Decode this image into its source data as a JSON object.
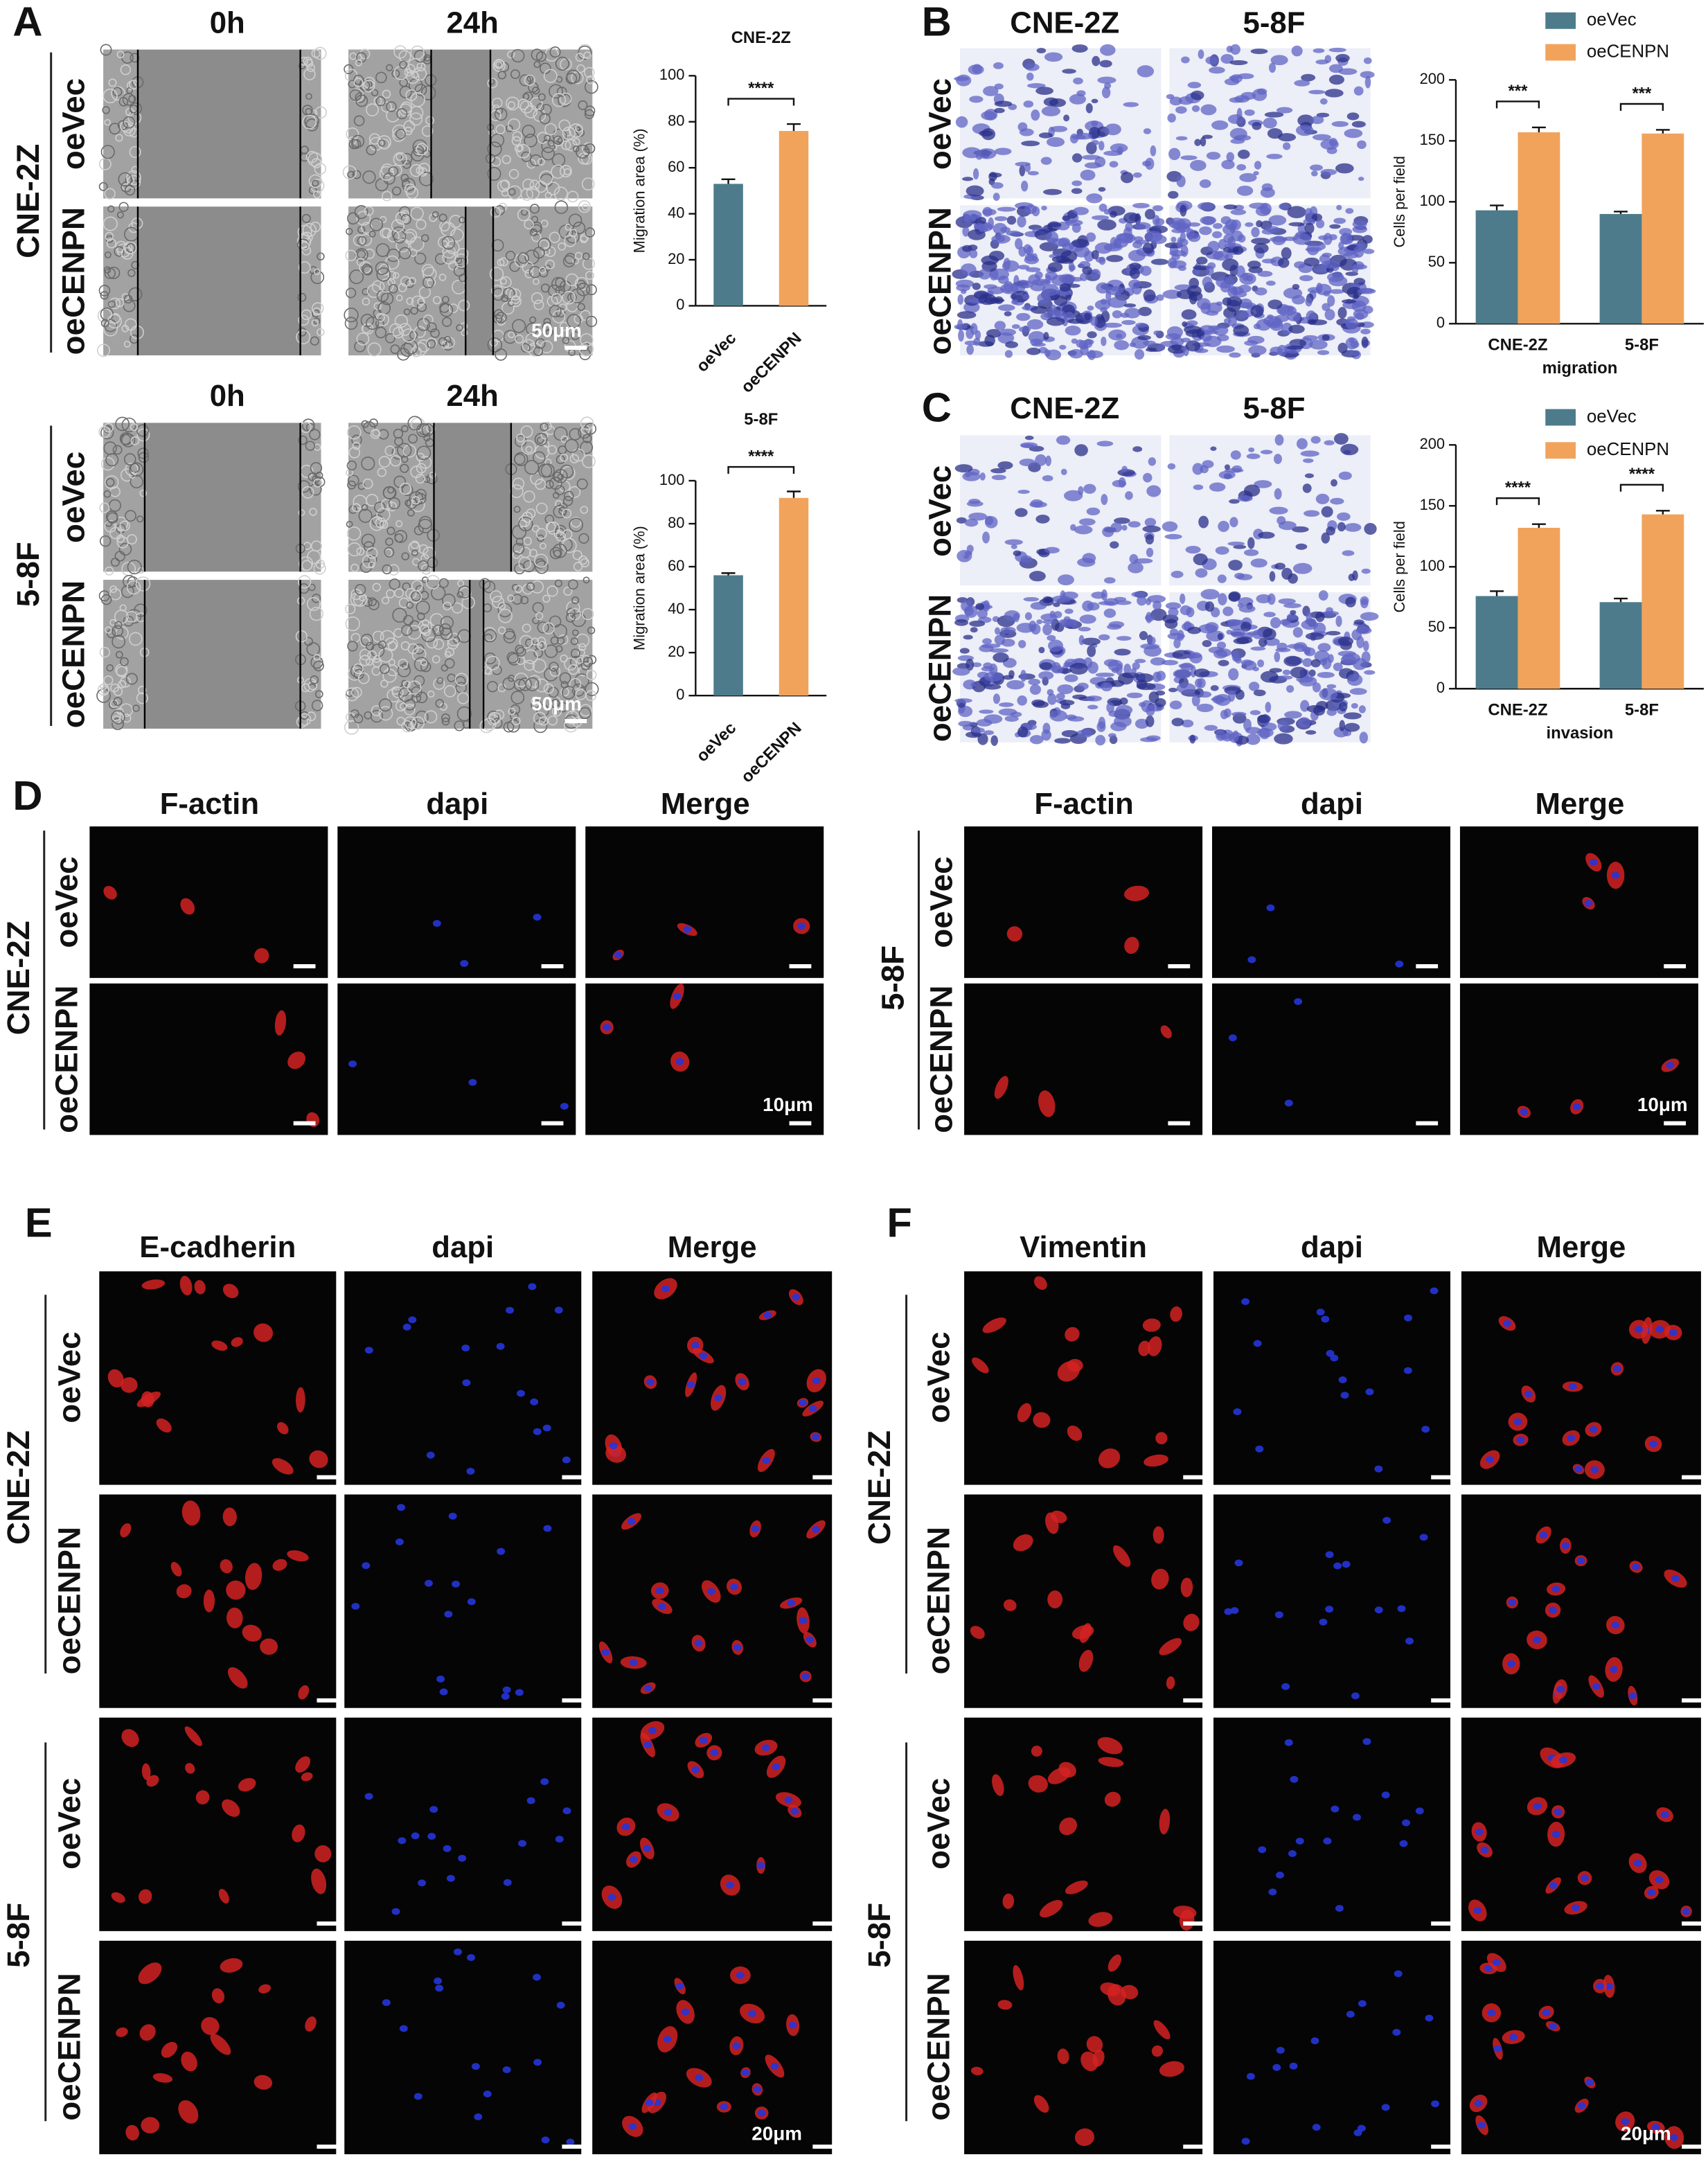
{
  "chart_data": [
    {
      "type": "bar",
      "title": "CNE-2Z",
      "y_label": "Migration area (%)",
      "categories": [
        "oeVec",
        "oeCENPN"
      ],
      "values": [
        53,
        76
      ],
      "errors": [
        2,
        3
      ],
      "colors": [
        "#4d7b8b",
        "#f1a35c"
      ],
      "ylim": [
        0,
        100
      ],
      "yticks": [
        0,
        20,
        40,
        60,
        80,
        100
      ],
      "significance": "****"
    },
    {
      "type": "bar",
      "title": "5-8F",
      "y_label": "Migration area (%)",
      "categories": [
        "oeVec",
        "oeCENPN"
      ],
      "values": [
        56,
        92
      ],
      "errors": [
        1,
        3
      ],
      "colors": [
        "#4d7b8b",
        "#f1a35c"
      ],
      "ylim": [
        0,
        100
      ],
      "yticks": [
        0,
        20,
        40,
        60,
        80,
        100
      ],
      "significance": "****"
    },
    {
      "type": "grouped_bar",
      "x_label": "migration",
      "y_label": "Cells per field",
      "categories": [
        "CNE-2Z",
        "5-8F"
      ],
      "series": [
        {
          "name": "oeVec",
          "color": "#4d7b8b",
          "values": [
            93,
            90
          ],
          "errors": [
            4,
            2
          ]
        },
        {
          "name": "oeCENPN",
          "color": "#f1a35c",
          "values": [
            157,
            156
          ],
          "errors": [
            4,
            3
          ]
        }
      ],
      "ylim": [
        0,
        200
      ],
      "yticks": [
        0,
        50,
        100,
        150,
        200
      ],
      "significance": [
        "***",
        "***"
      ],
      "legend": "top"
    },
    {
      "type": "grouped_bar",
      "x_label": "invasion",
      "y_label": "Cells per field",
      "categories": [
        "CNE-2Z",
        "5-8F"
      ],
      "series": [
        {
          "name": "oeVec",
          "color": "#4d7b8b",
          "values": [
            76,
            71
          ],
          "errors": [
            4,
            3
          ]
        },
        {
          "name": "oeCENPN",
          "color": "#f1a35c",
          "values": [
            132,
            143
          ],
          "errors": [
            3,
            3
          ]
        }
      ],
      "ylim": [
        0,
        200
      ],
      "yticks": [
        0,
        50,
        100,
        150,
        200
      ],
      "significance": [
        "****",
        "****"
      ],
      "legend": "top"
    }
  ],
  "panels": {
    "A": {
      "label": "A",
      "groups": [
        {
          "name": "CNE-2Z",
          "columns": [
            "0h",
            "24h"
          ],
          "rows": [
            "oeVec",
            "oeCENPN"
          ],
          "scale_bar": "50μm"
        },
        {
          "name": "5-8F",
          "columns": [
            "0h",
            "24h"
          ],
          "rows": [
            "oeVec",
            "oeCENPN"
          ],
          "scale_bar": "50μm"
        }
      ]
    },
    "B": {
      "label": "B",
      "columns": [
        "CNE-2Z",
        "5-8F"
      ],
      "rows": [
        "oeVec",
        "oeCENPN"
      ]
    },
    "C": {
      "label": "C",
      "columns": [
        "CNE-2Z",
        "5-8F"
      ],
      "rows": [
        "oeVec",
        "oeCENPN"
      ]
    },
    "D": {
      "label": "D",
      "groups": [
        {
          "name": "CNE-2Z",
          "columns": [
            "F-actin",
            "dapi",
            "Merge"
          ],
          "rows": [
            "oeVec",
            "oeCENPN"
          ],
          "scale_bar": "10μm"
        },
        {
          "name": "5-8F",
          "columns": [
            "F-actin",
            "dapi",
            "Merge"
          ],
          "rows": [
            "oeVec",
            "oeCENPN"
          ],
          "scale_bar": "10μm"
        }
      ]
    },
    "E": {
      "label": "E",
      "columns": [
        "E-cadherin",
        "dapi",
        "Merge"
      ],
      "groups": [
        {
          "name": "CNE-2Z",
          "rows": [
            "oeVec",
            "oeCENPN"
          ]
        },
        {
          "name": "5-8F",
          "rows": [
            "oeVec",
            "oeCENPN"
          ]
        }
      ],
      "scale_bar": "20μm"
    },
    "F": {
      "label": "F",
      "columns": [
        "Vimentin",
        "dapi",
        "Merge"
      ],
      "groups": [
        {
          "name": "CNE-2Z",
          "rows": [
            "oeVec",
            "oeCENPN"
          ]
        },
        {
          "name": "5-8F",
          "rows": [
            "oeVec",
            "oeCENPN"
          ]
        }
      ],
      "scale_bar": "20μm"
    }
  }
}
